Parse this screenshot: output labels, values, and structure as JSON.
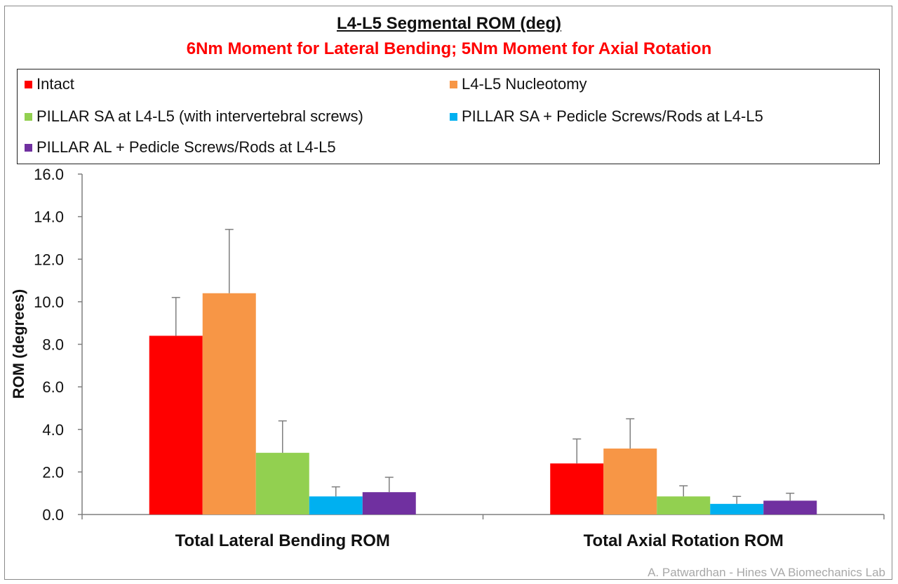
{
  "chart_data": {
    "type": "bar",
    "title": "L4-L5 Segmental ROM (deg)",
    "subtitle": "6Nm Moment for Lateral Bending; 5Nm Moment for Axial Rotation",
    "ylabel": "ROM (degrees)",
    "ylim": [
      0,
      16
    ],
    "yticks": [
      "0.0",
      "2.0",
      "4.0",
      "6.0",
      "8.0",
      "10.0",
      "12.0",
      "14.0",
      "16.0"
    ],
    "categories": [
      "Total Lateral Bending ROM",
      "Total Axial Rotation ROM"
    ],
    "series": [
      {
        "name": "Intact",
        "color": "#ff0000",
        "values": [
          8.4,
          2.4
        ],
        "errors": [
          1.8,
          1.15
        ]
      },
      {
        "name": "L4-L5 Nucleotomy",
        "color": "#f79646",
        "values": [
          10.4,
          3.1
        ],
        "errors": [
          3.0,
          1.4
        ]
      },
      {
        "name": "PILLAR SA at L4-L5 (with intervertebral screws)",
        "color": "#92d050",
        "values": [
          2.9,
          0.85
        ],
        "errors": [
          1.5,
          0.5
        ]
      },
      {
        "name": "PILLAR SA + Pedicle Screws/Rods at L4-L5",
        "color": "#00b0f0",
        "values": [
          0.85,
          0.5
        ],
        "errors": [
          0.45,
          0.35
        ]
      },
      {
        "name": "PILLAR AL + Pedicle Screws/Rods at L4-L5",
        "color": "#7030a0",
        "values": [
          1.05,
          0.65
        ],
        "errors": [
          0.7,
          0.35
        ]
      }
    ],
    "grid": false,
    "legend_position": "top"
  },
  "watermark": "A. Patwardhan - Hines VA Biomechanics Lab"
}
